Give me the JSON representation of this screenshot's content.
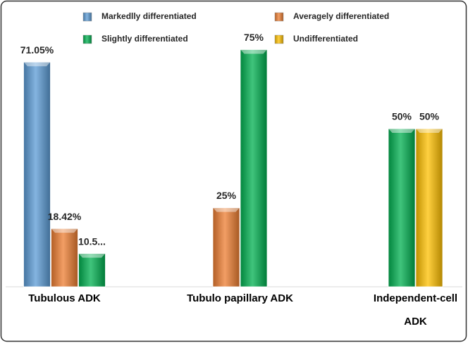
{
  "chart_data": {
    "type": "bar",
    "categories": [
      "Tubulous ADK",
      "Tubulo papillary ADK",
      "Independent-cell ADK"
    ],
    "series": [
      {
        "name": "Markedlly differentiated",
        "color": "#5b9bd5",
        "values": [
          71.05,
          null,
          null
        ],
        "value_labels": [
          "71.05%",
          null,
          null
        ]
      },
      {
        "name": "Averagely differentiated",
        "color": "#ed7d31",
        "values": [
          18.42,
          25,
          null
        ],
        "value_labels": [
          "18.42%",
          "25%",
          null
        ]
      },
      {
        "name": "Slightly differentiated",
        "color": "#00b050",
        "values": [
          10.53,
          75,
          50
        ],
        "value_labels": [
          "10.5...",
          "75%",
          "50%"
        ]
      },
      {
        "name": "Undifferentiated",
        "color": "#ffc000",
        "values": [
          null,
          null,
          50
        ],
        "value_labels": [
          null,
          null,
          "50%"
        ]
      }
    ],
    "legend": "top"
  }
}
